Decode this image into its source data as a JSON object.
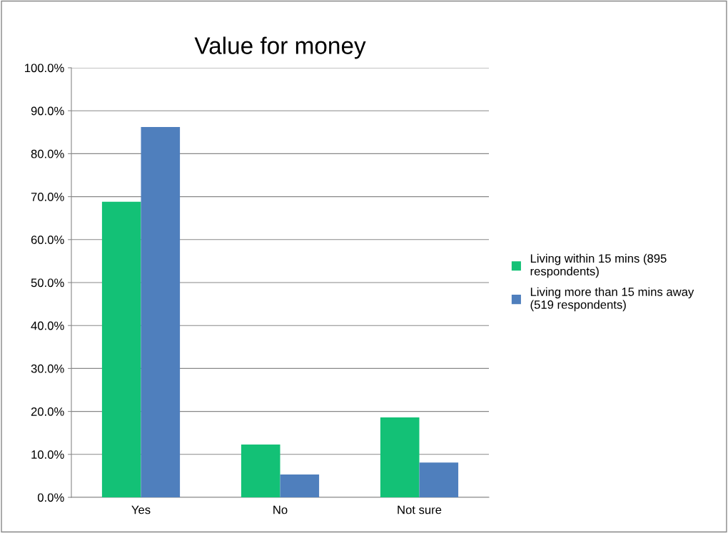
{
  "chart_data": {
    "type": "bar",
    "title": "Value for money",
    "categories": [
      "Yes",
      "No",
      "Not sure"
    ],
    "series": [
      {
        "name": "Living within 15 mins (895 respondents)",
        "color": "#13c176",
        "values": [
          68.8,
          12.3,
          18.6
        ]
      },
      {
        "name": "Living more than 15 mins away (519 respondents)",
        "color": "#4f7fbd",
        "values": [
          86.2,
          5.3,
          8.1
        ]
      }
    ],
    "ylim": [
      0,
      100
    ],
    "yticks": [
      {
        "value": 0,
        "label": "0.0%"
      },
      {
        "value": 10,
        "label": "10.0%"
      },
      {
        "value": 20,
        "label": "20.0%"
      },
      {
        "value": 30,
        "label": "30.0%"
      },
      {
        "value": 40,
        "label": "40.0%"
      },
      {
        "value": 50,
        "label": "50.0%"
      },
      {
        "value": 60,
        "label": "60.0%"
      },
      {
        "value": 70,
        "label": "70.0%"
      },
      {
        "value": 80,
        "label": "80.0%"
      },
      {
        "value": 90,
        "label": "90.0%"
      },
      {
        "value": 100,
        "label": "100.0%"
      }
    ],
    "grid": "y",
    "legend": "right"
  }
}
